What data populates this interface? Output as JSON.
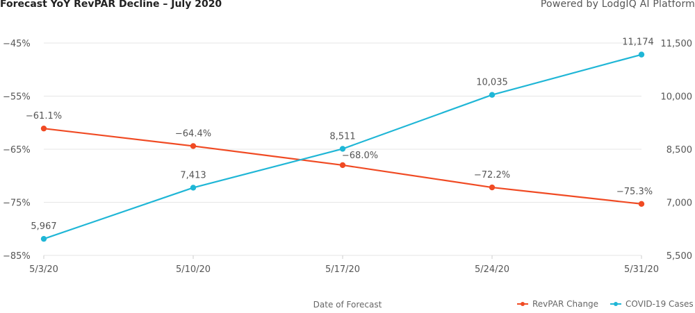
{
  "header": {
    "title": "Forecast YoY RevPAR Decline – July 2020",
    "powered_by": "Powered by LodgIQ AI Platform"
  },
  "chart_data": {
    "type": "line",
    "categories": [
      "5/3/20",
      "5/10/20",
      "5/17/20",
      "5/24/20",
      "5/31/20"
    ],
    "xlabel": "Date of Forecast",
    "series": [
      {
        "name": "RevPAR Change",
        "axis": "left",
        "color": "#f04a23",
        "values": [
          -61.1,
          -64.4,
          -68.0,
          -72.2,
          -75.3
        ],
        "labels": [
          "-61.1%",
          "-64.4%",
          "-68.0%",
          "-72.2%",
          "-75.3%"
        ]
      },
      {
        "name": "COVID-19 Cases",
        "axis": "right",
        "color": "#1fb6d6",
        "values": [
          5967,
          7413,
          8511,
          10035,
          11174
        ],
        "labels": [
          "5,967",
          "7,413",
          "8,511",
          "10,035",
          "11,174"
        ]
      }
    ],
    "y_left": {
      "ylim": [
        -85,
        -45
      ],
      "ticks": [
        -85,
        -75,
        -65,
        -55,
        -45
      ],
      "tick_labels": [
        "-85%",
        "-75%",
        "-65%",
        "-55%",
        "-45%"
      ]
    },
    "y_right": {
      "ylim": [
        5500,
        11500
      ],
      "ticks": [
        5500,
        7000,
        8500,
        10000,
        11500
      ],
      "tick_labels": [
        "5,500",
        "7,000",
        "8,500",
        "10,000",
        "11,500"
      ]
    },
    "grid": "horizontal",
    "legend_position": "bottom-right"
  }
}
